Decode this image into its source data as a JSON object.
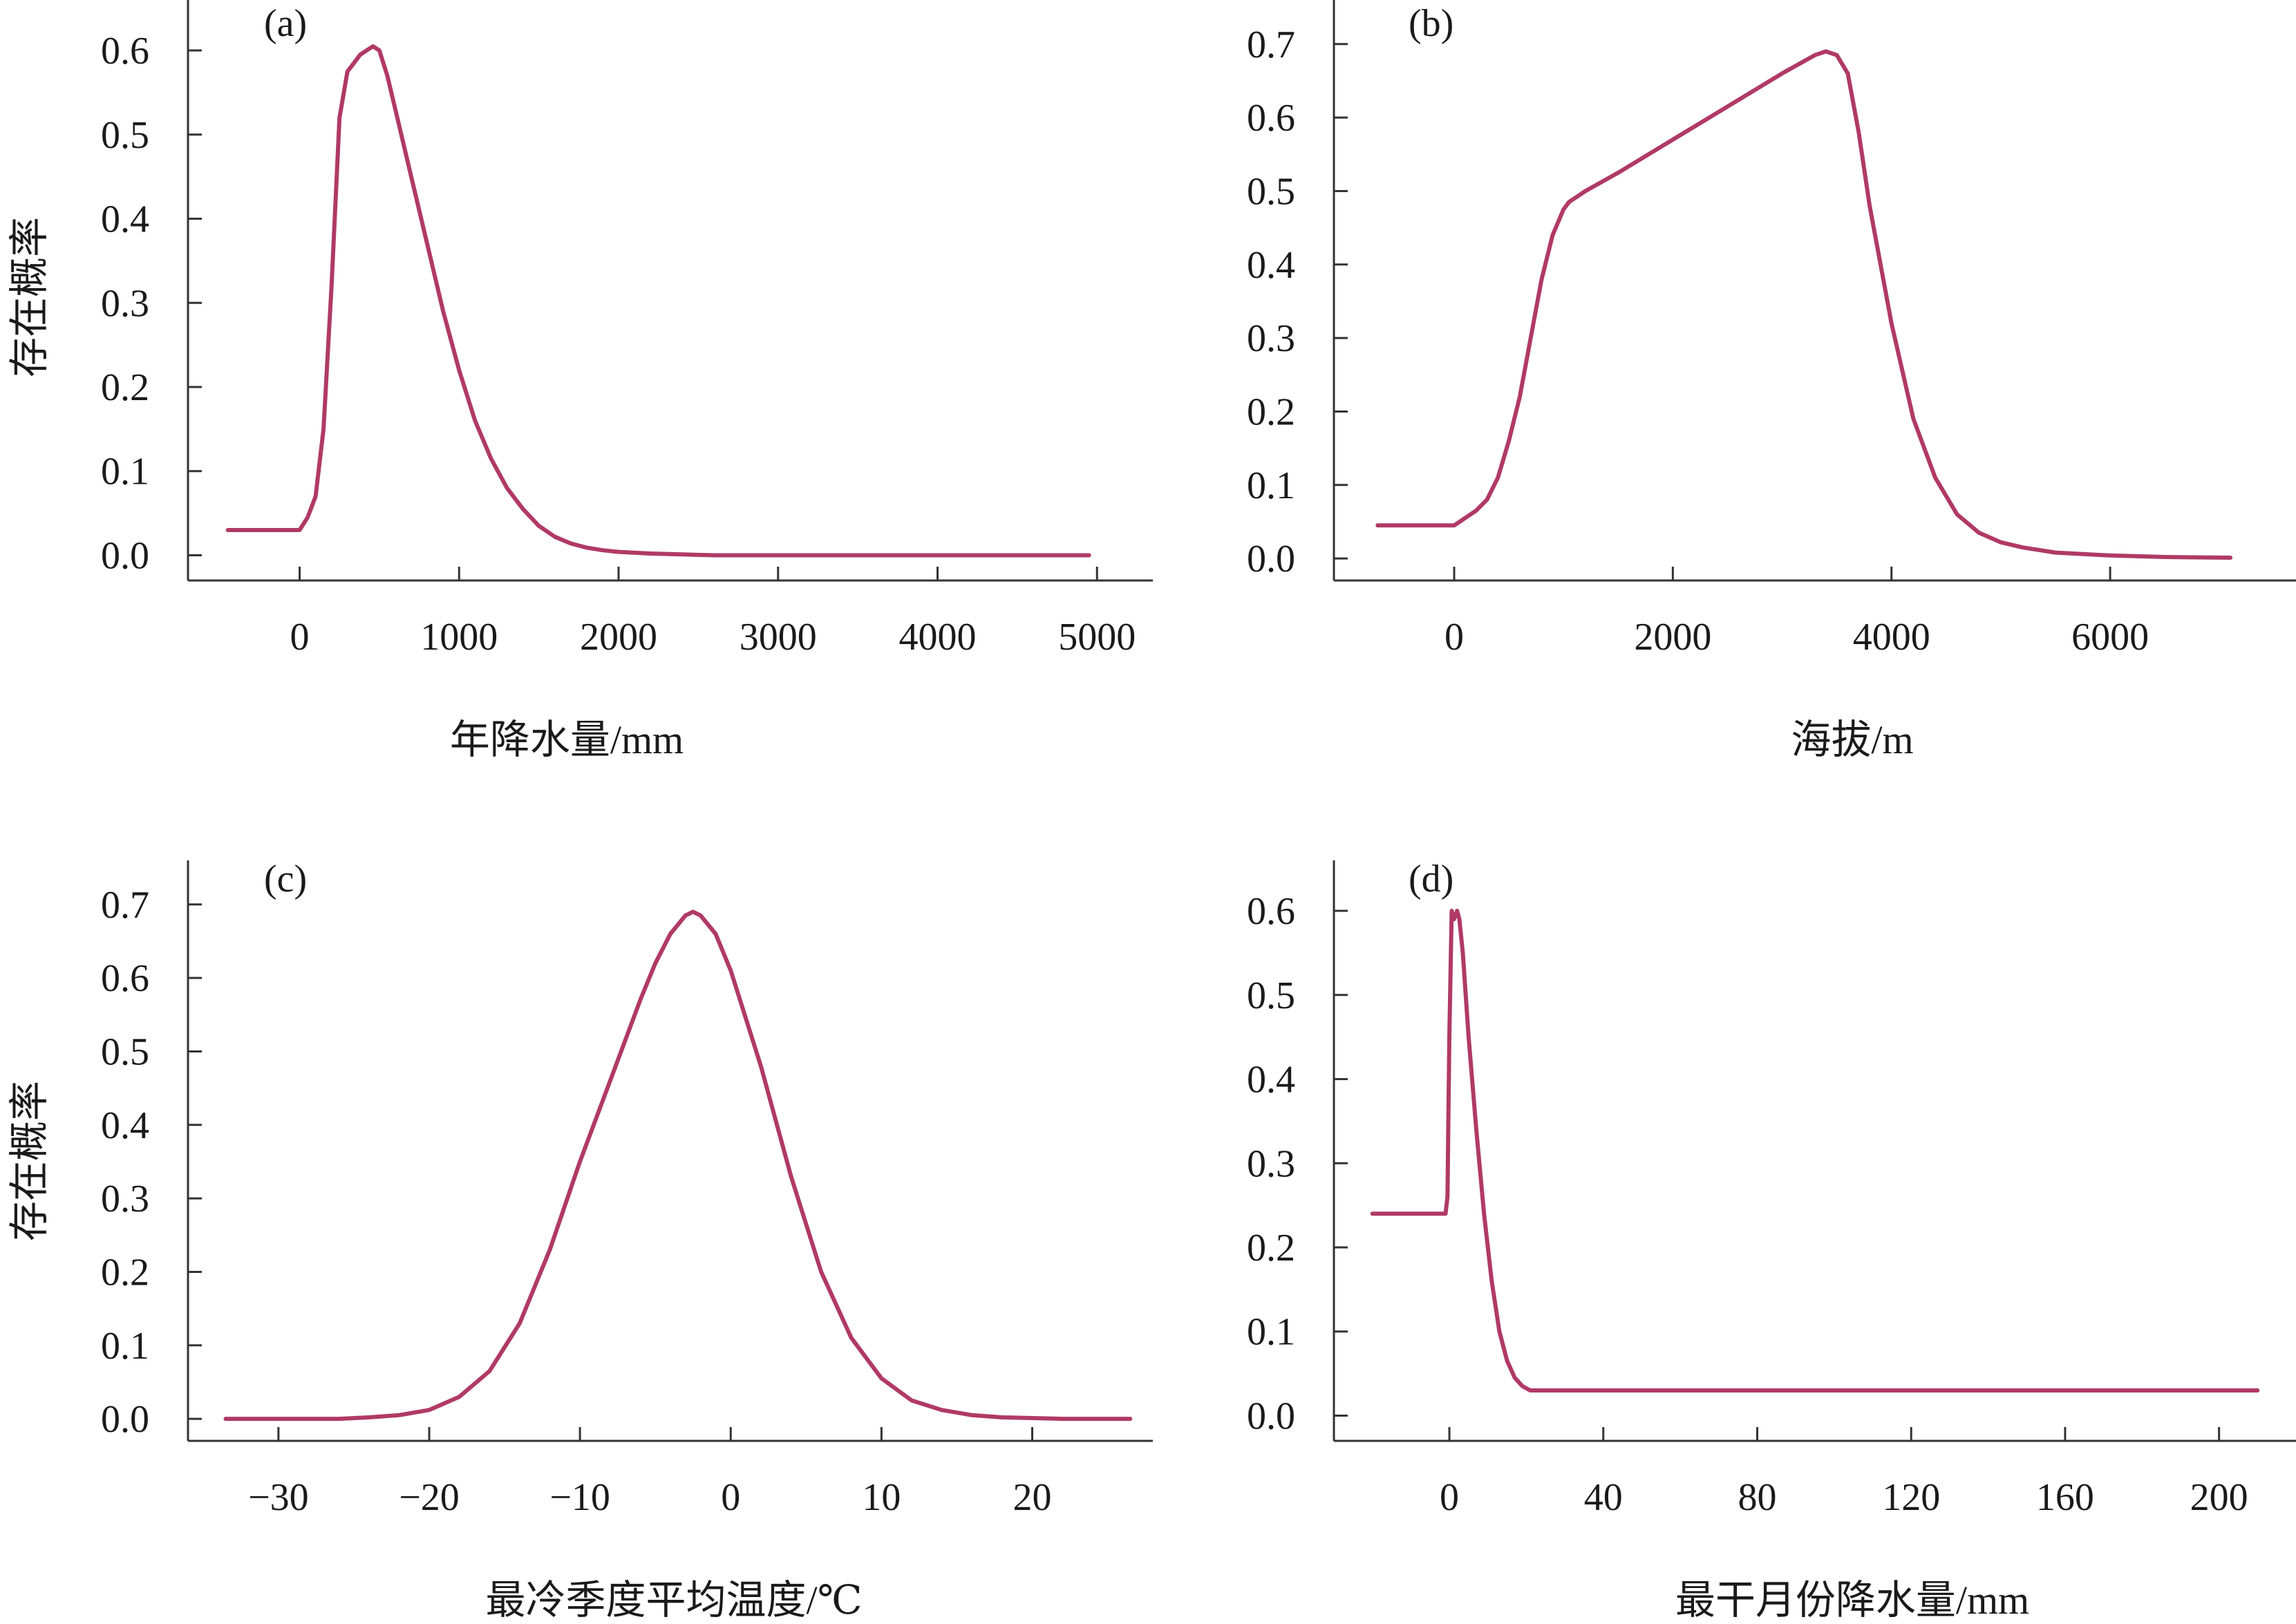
{
  "figure": {
    "ylabel_top": "存在概率",
    "ylabel_bottom": "存在概率",
    "curve_color": "#b03a64"
  },
  "chart_data": [
    {
      "type": "line",
      "panel": "(a)",
      "xlabel": "年降水量/mm",
      "ylabel": "存在概率",
      "xlim": [
        -700,
        5350
      ],
      "ylim": [
        -0.03,
        0.66
      ],
      "xticks": [
        0,
        1000,
        2000,
        3000,
        4000,
        5000
      ],
      "xtick_labels": [
        "0",
        "1000",
        "2000",
        "3000",
        "4000",
        "5000"
      ],
      "yticks": [
        0.0,
        0.1,
        0.2,
        0.3,
        0.4,
        0.5,
        0.6
      ],
      "ytick_labels": [
        "0.0",
        "0.1",
        "0.2",
        "0.3",
        "0.4",
        "0.5",
        "0.6"
      ],
      "grid": false,
      "series": [
        {
          "x": [
            -450,
            -300,
            -100,
            0,
            50,
            100,
            150,
            200,
            250,
            300,
            340,
            360,
            380,
            420,
            460,
            500,
            550,
            600,
            700,
            800,
            900,
            1000,
            1100,
            1200,
            1300,
            1400,
            1500,
            1600,
            1700,
            1800,
            1900,
            2000,
            2200,
            2400,
            2600,
            3000,
            3500,
            4000,
            4500,
            4950
          ],
          "y": [
            0.03,
            0.03,
            0.03,
            0.03,
            0.045,
            0.07,
            0.15,
            0.32,
            0.52,
            0.575,
            0.585,
            0.59,
            0.595,
            0.6,
            0.605,
            0.6,
            0.57,
            0.53,
            0.45,
            0.37,
            0.29,
            0.22,
            0.16,
            0.115,
            0.08,
            0.055,
            0.035,
            0.022,
            0.014,
            0.009,
            0.006,
            0.004,
            0.002,
            0.001,
            0.0,
            0.0,
            0.0,
            0.0,
            0.0,
            0.0
          ]
        }
      ]
    },
    {
      "type": "line",
      "panel": "(b)",
      "xlabel": "海拔/m",
      "ylabel": "",
      "xlim": [
        -1100,
        7700
      ],
      "ylim": [
        -0.03,
        0.76
      ],
      "xticks": [
        0,
        2000,
        4000,
        6000
      ],
      "xtick_labels": [
        "0",
        "2000",
        "4000",
        "6000"
      ],
      "yticks": [
        0.0,
        0.1,
        0.2,
        0.3,
        0.4,
        0.5,
        0.6,
        0.7
      ],
      "ytick_labels": [
        "0.0",
        "0.1",
        "0.2",
        "0.3",
        "0.4",
        "0.5",
        "0.6",
        "0.7"
      ],
      "grid": false,
      "series": [
        {
          "x": [
            -700,
            -300,
            0,
            100,
            200,
            300,
            400,
            500,
            600,
            700,
            800,
            900,
            1000,
            1050,
            1200,
            1500,
            2000,
            2500,
            3000,
            3300,
            3400,
            3500,
            3600,
            3700,
            3800,
            4000,
            4200,
            4400,
            4600,
            4800,
            5000,
            5200,
            5500,
            6000,
            6500,
            7100
          ],
          "y": [
            0.045,
            0.045,
            0.045,
            0.055,
            0.065,
            0.08,
            0.11,
            0.16,
            0.22,
            0.3,
            0.38,
            0.44,
            0.475,
            0.485,
            0.5,
            0.525,
            0.57,
            0.615,
            0.66,
            0.685,
            0.69,
            0.685,
            0.66,
            0.58,
            0.48,
            0.32,
            0.19,
            0.11,
            0.06,
            0.035,
            0.022,
            0.015,
            0.008,
            0.004,
            0.002,
            0.001
          ]
        }
      ]
    },
    {
      "type": "line",
      "panel": "(c)",
      "xlabel": "最冷季度平均温度/℃",
      "ylabel": "存在概率",
      "xlim": [
        -36,
        28
      ],
      "ylim": [
        -0.03,
        0.76
      ],
      "xticks": [
        -30,
        -20,
        -10,
        0,
        10,
        20
      ],
      "xtick_labels": [
        "−30",
        "−20",
        "−10",
        "0",
        "10",
        "20"
      ],
      "yticks": [
        0.0,
        0.1,
        0.2,
        0.3,
        0.4,
        0.5,
        0.6,
        0.7
      ],
      "ytick_labels": [
        "0.0",
        "0.1",
        "0.2",
        "0.3",
        "0.4",
        "0.5",
        "0.6",
        "0.7"
      ],
      "grid": false,
      "series": [
        {
          "x": [
            -33.5,
            -30,
            -26,
            -24,
            -22,
            -20,
            -18,
            -16,
            -14,
            -12,
            -10,
            -8,
            -6,
            -5,
            -4,
            -3,
            -2.5,
            -2,
            -1,
            0,
            2,
            4,
            6,
            8,
            10,
            12,
            14,
            16,
            18,
            20,
            22,
            24,
            26.5
          ],
          "y": [
            0.0,
            0.0,
            0.0,
            0.002,
            0.005,
            0.012,
            0.03,
            0.065,
            0.13,
            0.23,
            0.35,
            0.46,
            0.57,
            0.62,
            0.66,
            0.685,
            0.69,
            0.685,
            0.66,
            0.61,
            0.48,
            0.33,
            0.2,
            0.11,
            0.055,
            0.025,
            0.012,
            0.005,
            0.002,
            0.001,
            0.0,
            0.0,
            0.0
          ]
        }
      ]
    },
    {
      "type": "line",
      "panel": "(d)",
      "xlabel": "最干月份降水量/mm",
      "ylabel": "",
      "xlim": [
        -30,
        220
      ],
      "ylim": [
        -0.03,
        0.66
      ],
      "xticks": [
        0,
        40,
        80,
        120,
        160,
        200
      ],
      "xtick_labels": [
        "0",
        "40",
        "80",
        "120",
        "160",
        "200"
      ],
      "yticks": [
        0.0,
        0.1,
        0.2,
        0.3,
        0.4,
        0.5,
        0.6
      ],
      "ytick_labels": [
        "0.0",
        "0.1",
        "0.2",
        "0.3",
        "0.4",
        "0.5",
        "0.6"
      ],
      "grid": false,
      "series": [
        {
          "x": [
            -20,
            -10,
            -1,
            -0.5,
            0,
            0.6,
            1.2,
            2,
            2.6,
            3.5,
            5,
            7,
            9,
            11,
            13,
            15,
            17,
            19,
            21,
            25,
            40,
            80,
            120,
            160,
            210
          ],
          "y": [
            0.24,
            0.24,
            0.24,
            0.26,
            0.45,
            0.6,
            0.59,
            0.6,
            0.59,
            0.55,
            0.45,
            0.34,
            0.24,
            0.16,
            0.1,
            0.065,
            0.045,
            0.035,
            0.03,
            0.03,
            0.03,
            0.03,
            0.03,
            0.03,
            0.03
          ]
        }
      ]
    }
  ]
}
